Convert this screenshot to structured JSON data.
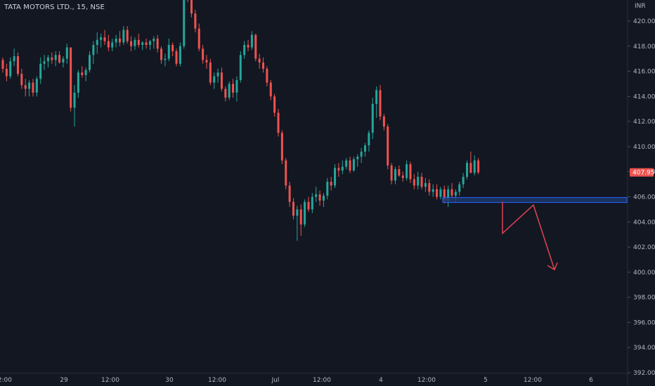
{
  "header": {
    "symbol_title": "TATA MOTORS LTD., 15, NSE"
  },
  "chart_data": {
    "type": "candlestick",
    "title": "TATA MOTORS LTD., 15, NSE",
    "currency_label": "INR",
    "last_price": "407.95",
    "ylim": [
      392,
      422
    ],
    "y_ticks": [
      "420.00",
      "418.00",
      "416.00",
      "414.00",
      "412.00",
      "410.00",
      "408.00",
      "406.00",
      "404.00",
      "402.00",
      "400.00",
      "398.00",
      "396.00",
      "394.00",
      "392.00"
    ],
    "x_ticks": [
      "12:00",
      "29",
      "12:00",
      "30",
      "12:00",
      "Jul",
      "12:00",
      "4",
      "12:00",
      "5",
      "12:00",
      "6"
    ],
    "grid": false,
    "colors": {
      "up": "#26a69a",
      "down": "#ef5350",
      "zone": "#1e3a6e",
      "zone_border": "#2962ff",
      "drawing": "#e04352",
      "price_tag": "#ef5350"
    },
    "candles": [
      [
        416.9,
        417.1,
        415.9,
        416.2
      ],
      [
        416.2,
        416.6,
        415.2,
        415.6
      ],
      [
        415.6,
        417.1,
        415.4,
        416.8
      ],
      [
        416.8,
        417.8,
        416.4,
        417.2
      ],
      [
        417.2,
        417.5,
        415.6,
        415.8
      ],
      [
        415.8,
        416.2,
        414.6,
        414.9
      ],
      [
        414.9,
        415.4,
        414.0,
        414.6
      ],
      [
        414.6,
        415.3,
        414.0,
        415.1
      ],
      [
        415.1,
        415.4,
        414.0,
        414.3
      ],
      [
        414.3,
        415.6,
        414.0,
        415.4
      ],
      [
        415.4,
        417.1,
        415.0,
        416.6
      ],
      [
        416.6,
        417.3,
        416.1,
        416.8
      ],
      [
        416.8,
        417.3,
        416.3,
        417.1
      ],
      [
        417.1,
        417.5,
        416.6,
        416.9
      ],
      [
        416.9,
        417.6,
        416.4,
        417.3
      ],
      [
        417.3,
        417.6,
        416.6,
        416.7
      ],
      [
        416.7,
        417.2,
        416.3,
        417.0
      ],
      [
        417.0,
        418.2,
        416.6,
        417.9
      ],
      [
        417.9,
        417.9,
        412.8,
        413.1
      ],
      [
        413.1,
        414.9,
        411.6,
        414.3
      ],
      [
        414.3,
        416.1,
        413.9,
        415.9
      ],
      [
        415.9,
        416.4,
        415.5,
        415.7
      ],
      [
        415.7,
        416.3,
        415.2,
        416.1
      ],
      [
        416.1,
        417.6,
        415.9,
        417.3
      ],
      [
        417.3,
        418.4,
        416.6,
        418.1
      ],
      [
        418.1,
        419.1,
        417.4,
        418.5
      ],
      [
        418.5,
        419.0,
        417.9,
        418.7
      ],
      [
        418.7,
        419.3,
        418.1,
        418.4
      ],
      [
        418.4,
        418.9,
        417.6,
        417.9
      ],
      [
        417.9,
        418.6,
        417.6,
        418.3
      ],
      [
        418.3,
        418.9,
        417.9,
        418.6
      ],
      [
        418.6,
        419.2,
        418.0,
        418.3
      ],
      [
        418.3,
        419.6,
        418.1,
        419.3
      ],
      [
        419.3,
        419.6,
        418.2,
        418.4
      ],
      [
        418.4,
        418.8,
        417.6,
        418.0
      ],
      [
        418.0,
        418.7,
        417.7,
        418.5
      ],
      [
        418.5,
        419.0,
        417.9,
        418.1
      ],
      [
        418.1,
        418.4,
        417.7,
        418.3
      ],
      [
        418.3,
        418.6,
        417.8,
        418.1
      ],
      [
        418.1,
        418.5,
        417.7,
        418.4
      ],
      [
        418.4,
        418.8,
        417.8,
        418.6
      ],
      [
        418.6,
        418.9,
        417.5,
        417.8
      ],
      [
        417.8,
        418.0,
        416.6,
        416.9
      ],
      [
        416.9,
        417.4,
        416.4,
        417.0
      ],
      [
        417.0,
        418.6,
        416.8,
        418.1
      ],
      [
        418.1,
        418.3,
        417.2,
        417.6
      ],
      [
        417.6,
        417.8,
        416.4,
        416.6
      ],
      [
        416.6,
        418.3,
        416.4,
        418.0
      ],
      [
        418.0,
        423.8,
        417.8,
        423.5
      ],
      [
        423.5,
        424.0,
        421.5,
        421.8
      ],
      [
        421.8,
        422.2,
        420.3,
        420.6
      ],
      [
        420.6,
        420.9,
        419.1,
        419.4
      ],
      [
        419.4,
        419.8,
        417.6,
        417.8
      ],
      [
        417.8,
        418.1,
        416.6,
        416.9
      ],
      [
        416.9,
        417.3,
        416.2,
        416.7
      ],
      [
        416.7,
        417.0,
        414.9,
        415.1
      ],
      [
        415.1,
        415.9,
        414.6,
        415.6
      ],
      [
        415.6,
        416.2,
        415.1,
        415.9
      ],
      [
        415.9,
        416.3,
        414.4,
        414.6
      ],
      [
        414.6,
        414.8,
        413.6,
        413.9
      ],
      [
        413.9,
        415.2,
        413.7,
        415.0
      ],
      [
        415.0,
        415.4,
        413.9,
        414.3
      ],
      [
        414.3,
        415.6,
        413.6,
        415.3
      ],
      [
        415.3,
        417.6,
        415.1,
        417.3
      ],
      [
        417.3,
        418.4,
        417.0,
        418.1
      ],
      [
        418.1,
        418.5,
        417.6,
        417.9
      ],
      [
        417.9,
        419.2,
        417.7,
        418.9
      ],
      [
        418.9,
        419.0,
        416.8,
        417.0
      ],
      [
        417.0,
        417.4,
        416.2,
        416.7
      ],
      [
        416.7,
        417.1,
        415.9,
        416.2
      ],
      [
        416.2,
        416.4,
        414.8,
        415.1
      ],
      [
        415.1,
        415.3,
        413.7,
        414.0
      ],
      [
        414.0,
        414.2,
        412.4,
        412.7
      ],
      [
        412.7,
        413.0,
        410.8,
        411.1
      ],
      [
        411.1,
        411.3,
        408.6,
        408.9
      ],
      [
        408.9,
        409.1,
        406.6,
        406.9
      ],
      [
        406.9,
        407.2,
        405.2,
        405.6
      ],
      [
        405.6,
        405.9,
        404.2,
        404.5
      ],
      [
        404.5,
        405.3,
        402.5,
        405.0
      ],
      [
        405.0,
        405.4,
        402.9,
        403.8
      ],
      [
        403.8,
        405.8,
        403.6,
        405.6
      ],
      [
        405.6,
        406.0,
        404.8,
        405.0
      ],
      [
        405.0,
        406.3,
        404.7,
        406.0
      ],
      [
        406.0,
        406.8,
        405.6,
        406.2
      ],
      [
        406.2,
        406.5,
        405.3,
        405.7
      ],
      [
        405.7,
        406.3,
        405.2,
        406.1
      ],
      [
        406.1,
        407.5,
        405.8,
        407.2
      ],
      [
        407.2,
        407.6,
        406.5,
        406.9
      ],
      [
        406.9,
        408.6,
        406.7,
        408.3
      ],
      [
        408.3,
        408.7,
        407.6,
        408.1
      ],
      [
        408.1,
        408.9,
        407.8,
        408.4
      ],
      [
        408.4,
        409.1,
        408.2,
        408.9
      ],
      [
        408.9,
        409.2,
        407.9,
        408.1
      ],
      [
        408.1,
        409.2,
        408.0,
        409.0
      ],
      [
        409.0,
        409.4,
        408.4,
        409.2
      ],
      [
        409.2,
        409.9,
        408.7,
        409.6
      ],
      [
        409.6,
        410.3,
        409.2,
        410.1
      ],
      [
        410.1,
        411.3,
        409.6,
        411.1
      ],
      [
        411.1,
        413.9,
        410.6,
        413.4
      ],
      [
        413.4,
        414.8,
        412.3,
        414.5
      ],
      [
        414.5,
        414.9,
        412.1,
        412.4
      ],
      [
        412.4,
        412.6,
        411.3,
        411.6
      ],
      [
        411.6,
        411.8,
        408.2,
        408.5
      ],
      [
        408.5,
        408.7,
        407.0,
        407.3
      ],
      [
        407.3,
        408.4,
        407.0,
        408.2
      ],
      [
        408.2,
        408.5,
        407.6,
        407.7
      ],
      [
        407.7,
        408.0,
        407.2,
        407.5
      ],
      [
        407.5,
        408.9,
        407.3,
        408.6
      ],
      [
        408.6,
        408.8,
        407.1,
        407.4
      ],
      [
        407.4,
        407.8,
        406.6,
        406.9
      ],
      [
        406.9,
        408.0,
        406.6,
        407.6
      ],
      [
        407.6,
        407.9,
        406.6,
        406.8
      ],
      [
        406.8,
        407.5,
        406.4,
        407.1
      ],
      [
        407.1,
        407.4,
        406.1,
        406.4
      ],
      [
        406.4,
        407.0,
        406.0,
        406.6
      ],
      [
        406.6,
        407.0,
        405.8,
        406.0
      ],
      [
        406.0,
        406.8,
        405.8,
        406.6
      ],
      [
        406.6,
        406.9,
        405.5,
        405.7
      ],
      [
        405.7,
        406.9,
        405.2,
        406.6
      ],
      [
        406.6,
        407.1,
        405.9,
        406.1
      ],
      [
        406.1,
        406.6,
        405.6,
        406.4
      ],
      [
        406.4,
        407.2,
        406.1,
        407.0
      ],
      [
        407.0,
        407.9,
        406.7,
        407.6
      ],
      [
        407.6,
        408.9,
        407.4,
        408.7
      ],
      [
        408.7,
        409.6,
        408.1,
        407.9
      ],
      [
        407.9,
        409.3,
        407.7,
        408.9
      ],
      [
        408.9,
        409.1,
        407.8,
        407.95
      ]
    ]
  }
}
